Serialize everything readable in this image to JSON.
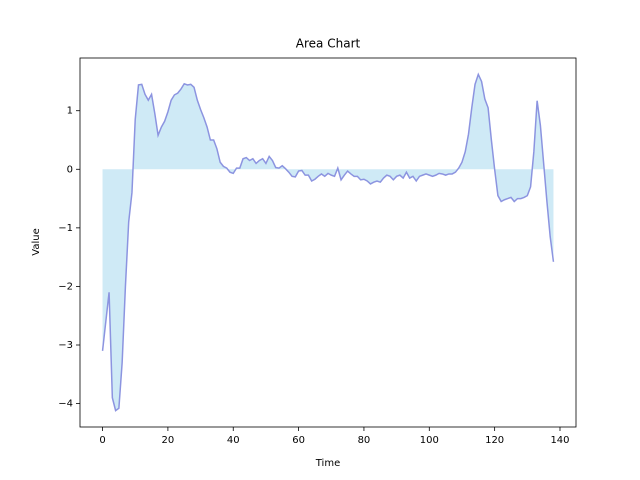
{
  "chart_data": {
    "type": "area",
    "title": "Area Chart",
    "x_label": "Time",
    "y_label": "Value",
    "x": [
      0,
      1,
      2,
      3,
      4,
      5,
      6,
      7,
      8,
      9,
      10,
      11,
      12,
      13,
      14,
      15,
      16,
      17,
      18,
      19,
      20,
      21,
      22,
      23,
      24,
      25,
      26,
      27,
      28,
      29,
      30,
      31,
      32,
      33,
      34,
      35,
      36,
      37,
      38,
      39,
      40,
      41,
      42,
      43,
      44,
      45,
      46,
      47,
      48,
      49,
      50,
      51,
      52,
      53,
      54,
      55,
      56,
      57,
      58,
      59,
      60,
      61,
      62,
      63,
      64,
      65,
      66,
      67,
      68,
      69,
      70,
      71,
      72,
      73,
      74,
      75,
      76,
      77,
      78,
      79,
      80,
      81,
      82,
      83,
      84,
      85,
      86,
      87,
      88,
      89,
      90,
      91,
      92,
      93,
      94,
      95,
      96,
      97,
      98,
      99,
      100,
      101,
      102,
      103,
      104,
      105,
      106,
      107,
      108,
      109,
      110,
      111,
      112,
      113,
      114,
      115,
      116,
      117,
      118,
      119,
      120,
      121,
      122,
      123,
      124,
      125,
      126,
      127,
      128,
      129,
      130,
      131,
      132,
      133,
      134,
      135,
      136,
      137,
      138
    ],
    "values": [
      -3.1,
      -2.6,
      -2.1,
      -3.9,
      -4.12,
      -4.08,
      -3.3,
      -2.0,
      -0.9,
      -0.4,
      0.85,
      1.44,
      1.45,
      1.28,
      1.18,
      1.28,
      0.95,
      0.58,
      0.72,
      0.82,
      0.98,
      1.18,
      1.27,
      1.3,
      1.37,
      1.46,
      1.44,
      1.45,
      1.4,
      1.18,
      1.02,
      0.88,
      0.72,
      0.5,
      0.5,
      0.35,
      0.12,
      0.05,
      0.02,
      -0.05,
      -0.07,
      0.02,
      0.02,
      0.18,
      0.2,
      0.15,
      0.18,
      0.1,
      0.15,
      0.18,
      0.1,
      0.22,
      0.15,
      0.03,
      0.02,
      0.06,
      0.01,
      -0.05,
      -0.12,
      -0.13,
      -0.03,
      -0.02,
      -0.1,
      -0.1,
      -0.2,
      -0.17,
      -0.12,
      -0.08,
      -0.12,
      -0.07,
      -0.1,
      -0.12,
      0.02,
      -0.18,
      -0.1,
      -0.03,
      -0.08,
      -0.12,
      -0.12,
      -0.18,
      -0.17,
      -0.2,
      -0.25,
      -0.22,
      -0.2,
      -0.22,
      -0.15,
      -0.1,
      -0.12,
      -0.18,
      -0.12,
      -0.1,
      -0.15,
      -0.05,
      -0.15,
      -0.12,
      -0.2,
      -0.12,
      -0.1,
      -0.08,
      -0.1,
      -0.12,
      -0.1,
      -0.07,
      -0.08,
      -0.1,
      -0.08,
      -0.08,
      -0.05,
      0.02,
      0.12,
      0.3,
      0.6,
      1.05,
      1.45,
      1.62,
      1.5,
      1.2,
      1.05,
      0.5,
      0.0,
      -0.45,
      -0.55,
      -0.52,
      -0.5,
      -0.48,
      -0.55,
      -0.5,
      -0.5,
      -0.48,
      -0.45,
      -0.3,
      0.3,
      1.17,
      0.75,
      0.1,
      -0.55,
      -1.15,
      -1.58
    ],
    "fill_color": "#cfeaf6",
    "line_color": "#8c94e0",
    "xlim": [
      -6.9,
      144.9
    ],
    "xticks": [
      0,
      20,
      40,
      60,
      80,
      100,
      120,
      140
    ],
    "ylim": [
      -4.4,
      1.9
    ],
    "yticks": [
      {
        "value": -4,
        "label": "−4"
      },
      {
        "value": -3,
        "label": "−3"
      },
      {
        "value": -2,
        "label": "−2"
      },
      {
        "value": -1,
        "label": "−1"
      },
      0,
      1
    ],
    "grid": false
  }
}
